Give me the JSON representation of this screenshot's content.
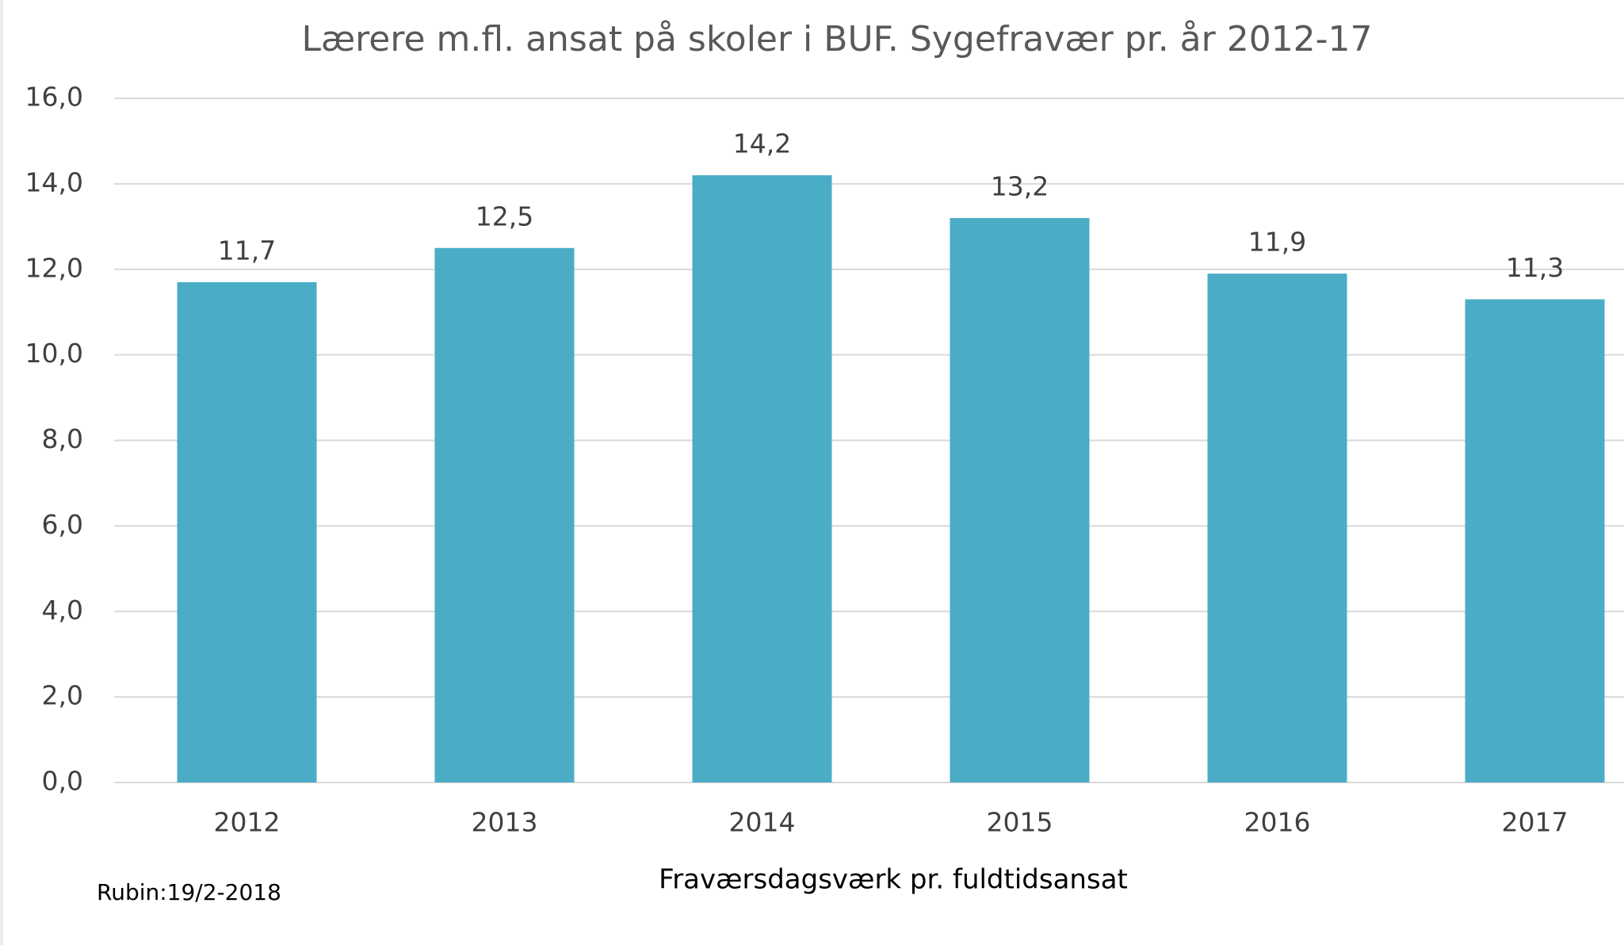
{
  "chart_data": {
    "type": "bar",
    "title": "Lærere m.fl. ansat på skoler i BUF. Sygefravær pr. år 2012-17",
    "x_label": "Fraværsdagsværk pr. fuldtidsansat",
    "footnote": "Rubin:19/2-2018",
    "categories": [
      "2012",
      "2013",
      "2014",
      "2015",
      "2016",
      "2017"
    ],
    "values": [
      11.7,
      12.5,
      14.2,
      13.2,
      11.9,
      11.3
    ],
    "value_labels": [
      "11,7",
      "12,5",
      "14,2",
      "13,2",
      "11,9",
      "11,3"
    ],
    "color": "#4bacc6",
    "ylim": [
      0,
      16
    ],
    "yticks": [
      {
        "value": 0,
        "label": "0,0"
      },
      {
        "value": 2,
        "label": "2,0"
      },
      {
        "value": 4,
        "label": "4,0"
      },
      {
        "value": 6,
        "label": "6,0"
      },
      {
        "value": 8,
        "label": "8,0"
      },
      {
        "value": 10,
        "label": "10,0"
      },
      {
        "value": 12,
        "label": "12,0"
      },
      {
        "value": 14,
        "label": "14,0"
      },
      {
        "value": 16,
        "label": "16,0"
      }
    ],
    "grid": true
  }
}
